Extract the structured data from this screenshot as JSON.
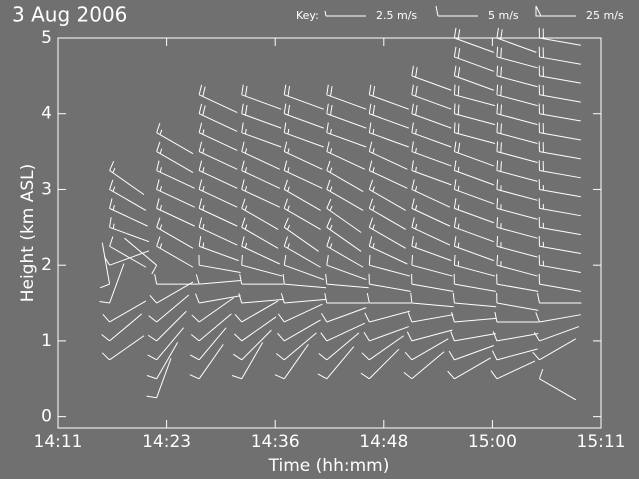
{
  "chart_data": {
    "type": "barbs",
    "title": "3 Aug 2006",
    "x_label": "Time (hh:mm)",
    "y_label": "Height (km ASL)",
    "key_label": "Key:",
    "key": [
      {
        "value": 2.5,
        "label": "2.5 m/s"
      },
      {
        "value": 5,
        "label": "5 m/s"
      },
      {
        "value": 25,
        "label": "25 m/s"
      }
    ],
    "xlim": [
      851.5,
      911.5
    ],
    "xticks": [
      {
        "value": 851.5,
        "label": "14:11"
      },
      {
        "value": 863.5,
        "label": "14:23"
      },
      {
        "value": 875.5,
        "label": "14:36"
      },
      {
        "value": 887.5,
        "label": "14:48"
      },
      {
        "value": 899.5,
        "label": "15:00"
      },
      {
        "value": 911.5,
        "label": "15:11"
      }
    ],
    "ylim": [
      -0.15,
      5.0
    ],
    "yticks": [
      0,
      1,
      2,
      3,
      4,
      5
    ],
    "color": "#ffffff",
    "x": [
      857.2,
      862.4,
      867.1,
      871.8,
      876.5,
      881.2,
      885.9,
      890.6,
      895.3,
      900.0,
      904.7
    ],
    "levels": [
      0.25,
      0.5,
      0.75,
      1.0,
      1.25,
      1.5,
      1.75,
      2.0,
      2.25,
      2.5,
      2.75,
      3.0,
      3.25,
      3.5,
      3.75,
      4.0,
      4.25,
      4.5,
      4.75,
      5.0
    ],
    "direction": [
      [
        null,
        null,
        235,
        230,
        240,
        200,
        170,
        250,
        300,
        290,
        295,
        300,
        305,
        null,
        null,
        null,
        null,
        null,
        null,
        null
      ],
      [
        200,
        210,
        220,
        225,
        230,
        240,
        270,
        130,
        300,
        300,
        295,
        295,
        295,
        300,
        300,
        null,
        null,
        null,
        null,
        null
      ],
      [
        null,
        215,
        220,
        230,
        235,
        260,
        265,
        280,
        290,
        295,
        295,
        295,
        295,
        295,
        295,
        295,
        295,
        null,
        null,
        null
      ],
      [
        null,
        210,
        225,
        235,
        240,
        265,
        270,
        285,
        295,
        300,
        300,
        295,
        295,
        295,
        290,
        290,
        290,
        null,
        null,
        null
      ],
      [
        null,
        215,
        230,
        240,
        245,
        265,
        275,
        290,
        300,
        305,
        300,
        300,
        295,
        295,
        290,
        290,
        290,
        null,
        null,
        null
      ],
      [
        null,
        220,
        230,
        245,
        250,
        270,
        275,
        290,
        300,
        305,
        305,
        300,
        300,
        295,
        290,
        290,
        290,
        null,
        null,
        null
      ],
      [
        null,
        225,
        235,
        250,
        255,
        270,
        280,
        285,
        295,
        300,
        300,
        300,
        295,
        295,
        290,
        290,
        290,
        null,
        null,
        null
      ],
      [
        null,
        230,
        240,
        255,
        260,
        275,
        280,
        285,
        290,
        295,
        295,
        295,
        290,
        290,
        290,
        290,
        290,
        290,
        null,
        null
      ],
      [
        null,
        240,
        250,
        260,
        265,
        275,
        280,
        285,
        290,
        290,
        290,
        290,
        290,
        290,
        285,
        285,
        285,
        290,
        290,
        290
      ],
      [
        null,
        245,
        255,
        260,
        270,
        280,
        280,
        285,
        285,
        285,
        285,
        285,
        285,
        285,
        285,
        285,
        285,
        285,
        285,
        290
      ],
      [
        null,
        300,
        240,
        250,
        260,
        270,
        280,
        280,
        280,
        280,
        280,
        280,
        280,
        280,
        280,
        280,
        280,
        280,
        280,
        280
      ]
    ],
    "speed": [
      [
        null,
        null,
        5,
        5,
        5,
        5,
        5,
        5,
        5,
        7.5,
        7.5,
        7.5,
        7.5,
        null,
        null,
        null,
        null,
        null,
        null,
        null
      ],
      [
        5,
        5,
        5,
        5,
        5,
        5,
        5,
        5,
        7.5,
        7.5,
        7.5,
        7.5,
        7.5,
        7.5,
        7.5,
        null,
        null,
        null,
        null,
        null
      ],
      [
        null,
        5,
        5,
        5,
        5,
        5,
        5,
        5,
        7.5,
        7.5,
        7.5,
        7.5,
        7.5,
        7.5,
        7.5,
        10,
        10,
        null,
        null,
        null
      ],
      [
        null,
        5,
        5,
        5,
        5,
        5,
        5,
        5,
        7.5,
        7.5,
        7.5,
        7.5,
        7.5,
        7.5,
        7.5,
        10,
        10,
        null,
        null,
        null
      ],
      [
        null,
        5,
        5,
        5,
        5,
        5,
        5,
        5,
        7.5,
        7.5,
        7.5,
        7.5,
        7.5,
        7.5,
        7.5,
        10,
        10,
        null,
        null,
        null
      ],
      [
        null,
        5,
        5,
        5,
        5,
        5,
        5,
        5,
        7.5,
        7.5,
        7.5,
        7.5,
        7.5,
        7.5,
        7.5,
        10,
        10,
        null,
        null,
        null
      ],
      [
        null,
        5,
        5,
        5,
        5,
        5,
        5,
        5,
        7.5,
        7.5,
        7.5,
        7.5,
        7.5,
        7.5,
        7.5,
        10,
        10,
        null,
        null,
        null
      ],
      [
        null,
        5,
        5,
        5,
        5,
        5,
        5,
        5,
        7.5,
        7.5,
        7.5,
        7.5,
        7.5,
        7.5,
        7.5,
        10,
        10,
        10,
        null,
        null
      ],
      [
        null,
        5,
        5,
        5,
        5,
        5,
        5,
        7.5,
        7.5,
        7.5,
        7.5,
        7.5,
        7.5,
        10,
        10,
        10,
        10,
        10,
        10,
        10
      ],
      [
        null,
        5,
        5,
        5,
        5,
        5,
        5,
        7.5,
        7.5,
        7.5,
        7.5,
        7.5,
        10,
        10,
        10,
        10,
        10,
        10,
        10,
        10
      ],
      [
        null,
        5,
        5,
        5,
        5,
        5,
        5,
        7.5,
        7.5,
        7.5,
        7.5,
        7.5,
        10,
        10,
        10,
        10,
        10,
        10,
        10,
        10
      ]
    ]
  }
}
